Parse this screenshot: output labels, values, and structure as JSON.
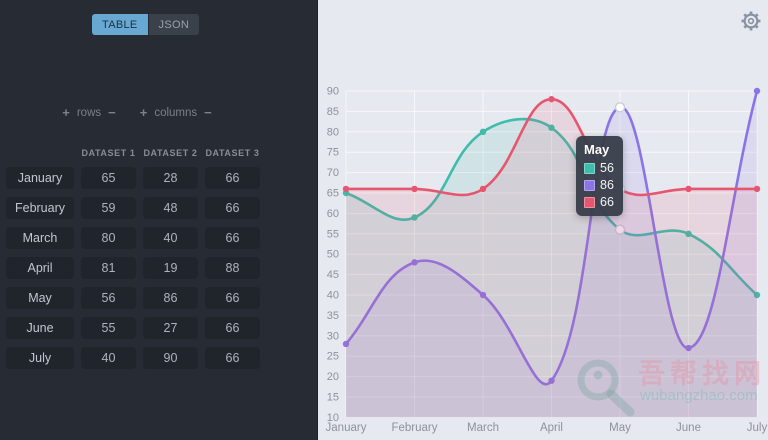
{
  "left_panel": {
    "tabs": [
      {
        "label": "TABLE",
        "active": true
      },
      {
        "label": "JSON",
        "active": false
      }
    ],
    "controls": {
      "plus": "+",
      "minus": "−",
      "rows_label": "rows",
      "columns_label": "columns"
    },
    "table": {
      "columns": [
        "DATASET 1",
        "DATASET 2",
        "DATASET 3"
      ],
      "rows": [
        {
          "label": "January",
          "values": [
            65,
            28,
            66
          ]
        },
        {
          "label": "February",
          "values": [
            59,
            48,
            66
          ]
        },
        {
          "label": "March",
          "values": [
            80,
            40,
            66
          ]
        },
        {
          "label": "April",
          "values": [
            81,
            19,
            88
          ]
        },
        {
          "label": "May",
          "values": [
            56,
            86,
            66
          ]
        },
        {
          "label": "June",
          "values": [
            55,
            27,
            66
          ]
        },
        {
          "label": "July",
          "values": [
            40,
            90,
            66
          ]
        }
      ]
    }
  },
  "chart_panel": {
    "gear_icon": "settings-gear",
    "tooltip": {
      "title": "May",
      "values": [
        56,
        86,
        66
      ]
    },
    "watermark": {
      "cn": "吾帮找网",
      "domain": "wubangzhao.com",
      "icon": "magnifier-icon"
    }
  },
  "chart_data": {
    "type": "line",
    "categories": [
      "January",
      "February",
      "March",
      "April",
      "May",
      "June",
      "July"
    ],
    "series": [
      {
        "name": "Dataset 1",
        "color": "#3fbcab",
        "values": [
          65,
          59,
          80,
          81,
          56,
          55,
          40
        ]
      },
      {
        "name": "Dataset 2",
        "color": "#8b74e6",
        "values": [
          28,
          48,
          40,
          19,
          86,
          27,
          90
        ]
      },
      {
        "name": "Dataset 3",
        "color": "#e6566f",
        "values": [
          66,
          66,
          66,
          88,
          66,
          66,
          66
        ]
      }
    ],
    "ylim": [
      10,
      90
    ],
    "ytick_step": 5,
    "grid": true,
    "fill": true,
    "fill_alpha": 0.13,
    "line_tension": 0.4,
    "highlight_index": 4,
    "legend_position": "none",
    "title": "",
    "xlabel": "",
    "ylabel": ""
  },
  "colors": {
    "accent_blue": "#67a9d3",
    "panel_dark": "#272c34",
    "chart_bg": "#e6e9ef",
    "grid_line": "rgba(255,255,255,0.65)",
    "axis_text": "#8d929b",
    "tooltip_bg": "rgba(56,62,74,0.96)"
  }
}
